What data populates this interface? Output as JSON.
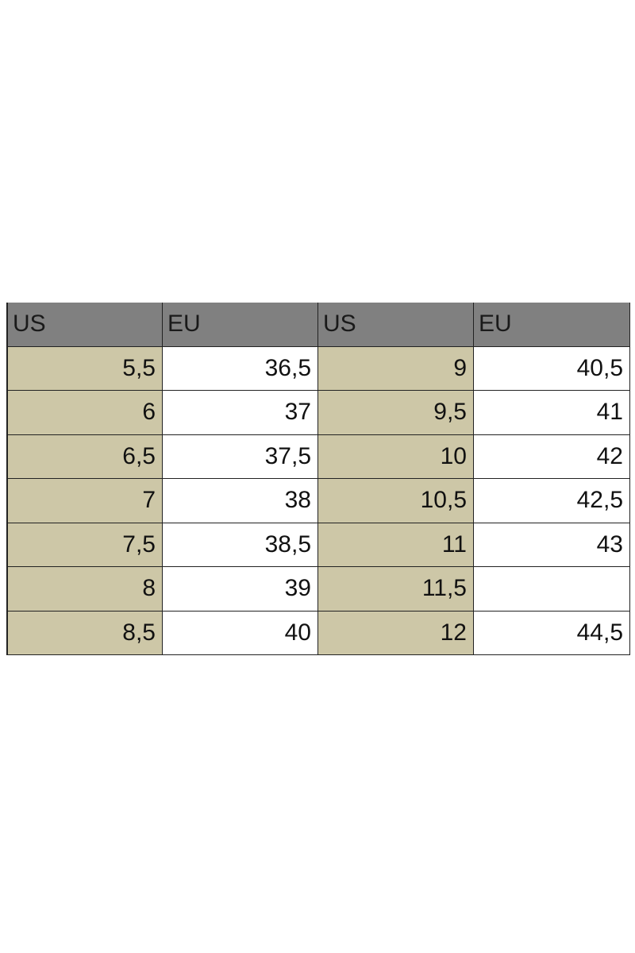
{
  "table": {
    "header": [
      "US",
      "EU",
      "US",
      "EU"
    ],
    "rows": [
      [
        "5,5",
        "36,5",
        "9",
        "40,5"
      ],
      [
        "6",
        "37",
        "9,5",
        "41"
      ],
      [
        "6,5",
        "37,5",
        "10",
        "42"
      ],
      [
        "7",
        "38",
        "10,5",
        "42,5"
      ],
      [
        "7,5",
        "38,5",
        "11",
        "43"
      ],
      [
        "8",
        "39",
        "11,5",
        null
      ],
      [
        "8,5",
        "40",
        "12",
        "44,5"
      ]
    ]
  }
}
